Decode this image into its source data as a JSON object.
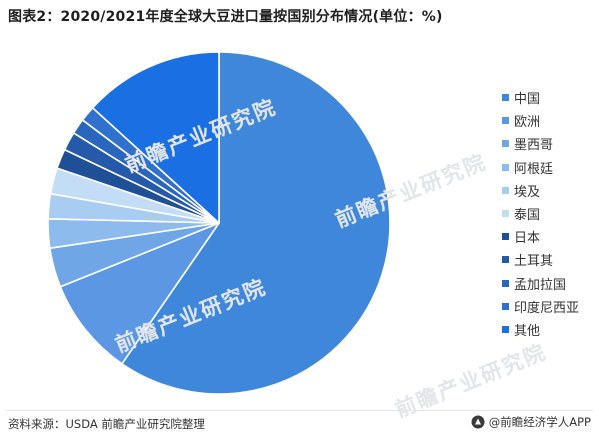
{
  "title": "图表2：2020/2021年度全球大豆进口量按国别分布情况(单位：%)",
  "footer": {
    "source": "资料来源：USDA 前瞻产业研究院整理",
    "brand": "@前瞻经济学人APP"
  },
  "watermark": "前瞻产业研究院",
  "chart_data": {
    "type": "pie",
    "title": "图表2：2020/2021年度全球大豆进口量按国别分布情况(单位：%)",
    "unit": "%",
    "legend_position": "right",
    "slices": [
      {
        "name": "中国",
        "value": 60.8,
        "color": "#3f87da"
      },
      {
        "name": "欧洲",
        "value": 9.5,
        "color": "#5b97e2"
      },
      {
        "name": "墨西哥",
        "value": 3.8,
        "color": "#6fa6e6"
      },
      {
        "name": "阿根廷",
        "value": 2.8,
        "color": "#8ebbed"
      },
      {
        "name": "埃及",
        "value": 2.4,
        "color": "#a9cdf2"
      },
      {
        "name": "泰国",
        "value": 2.5,
        "color": "#c3ddf6"
      },
      {
        "name": "日本",
        "value": 1.9,
        "color": "#1f4f96"
      },
      {
        "name": "土耳其",
        "value": 1.8,
        "color": "#245aa9"
      },
      {
        "name": "孟加拉国",
        "value": 1.5,
        "color": "#2a66bd"
      },
      {
        "name": "印度尼西亚",
        "value": 1.5,
        "color": "#2f71cc"
      },
      {
        "name": "其他",
        "value": 13.5,
        "color": "#1a6fe3"
      }
    ]
  }
}
